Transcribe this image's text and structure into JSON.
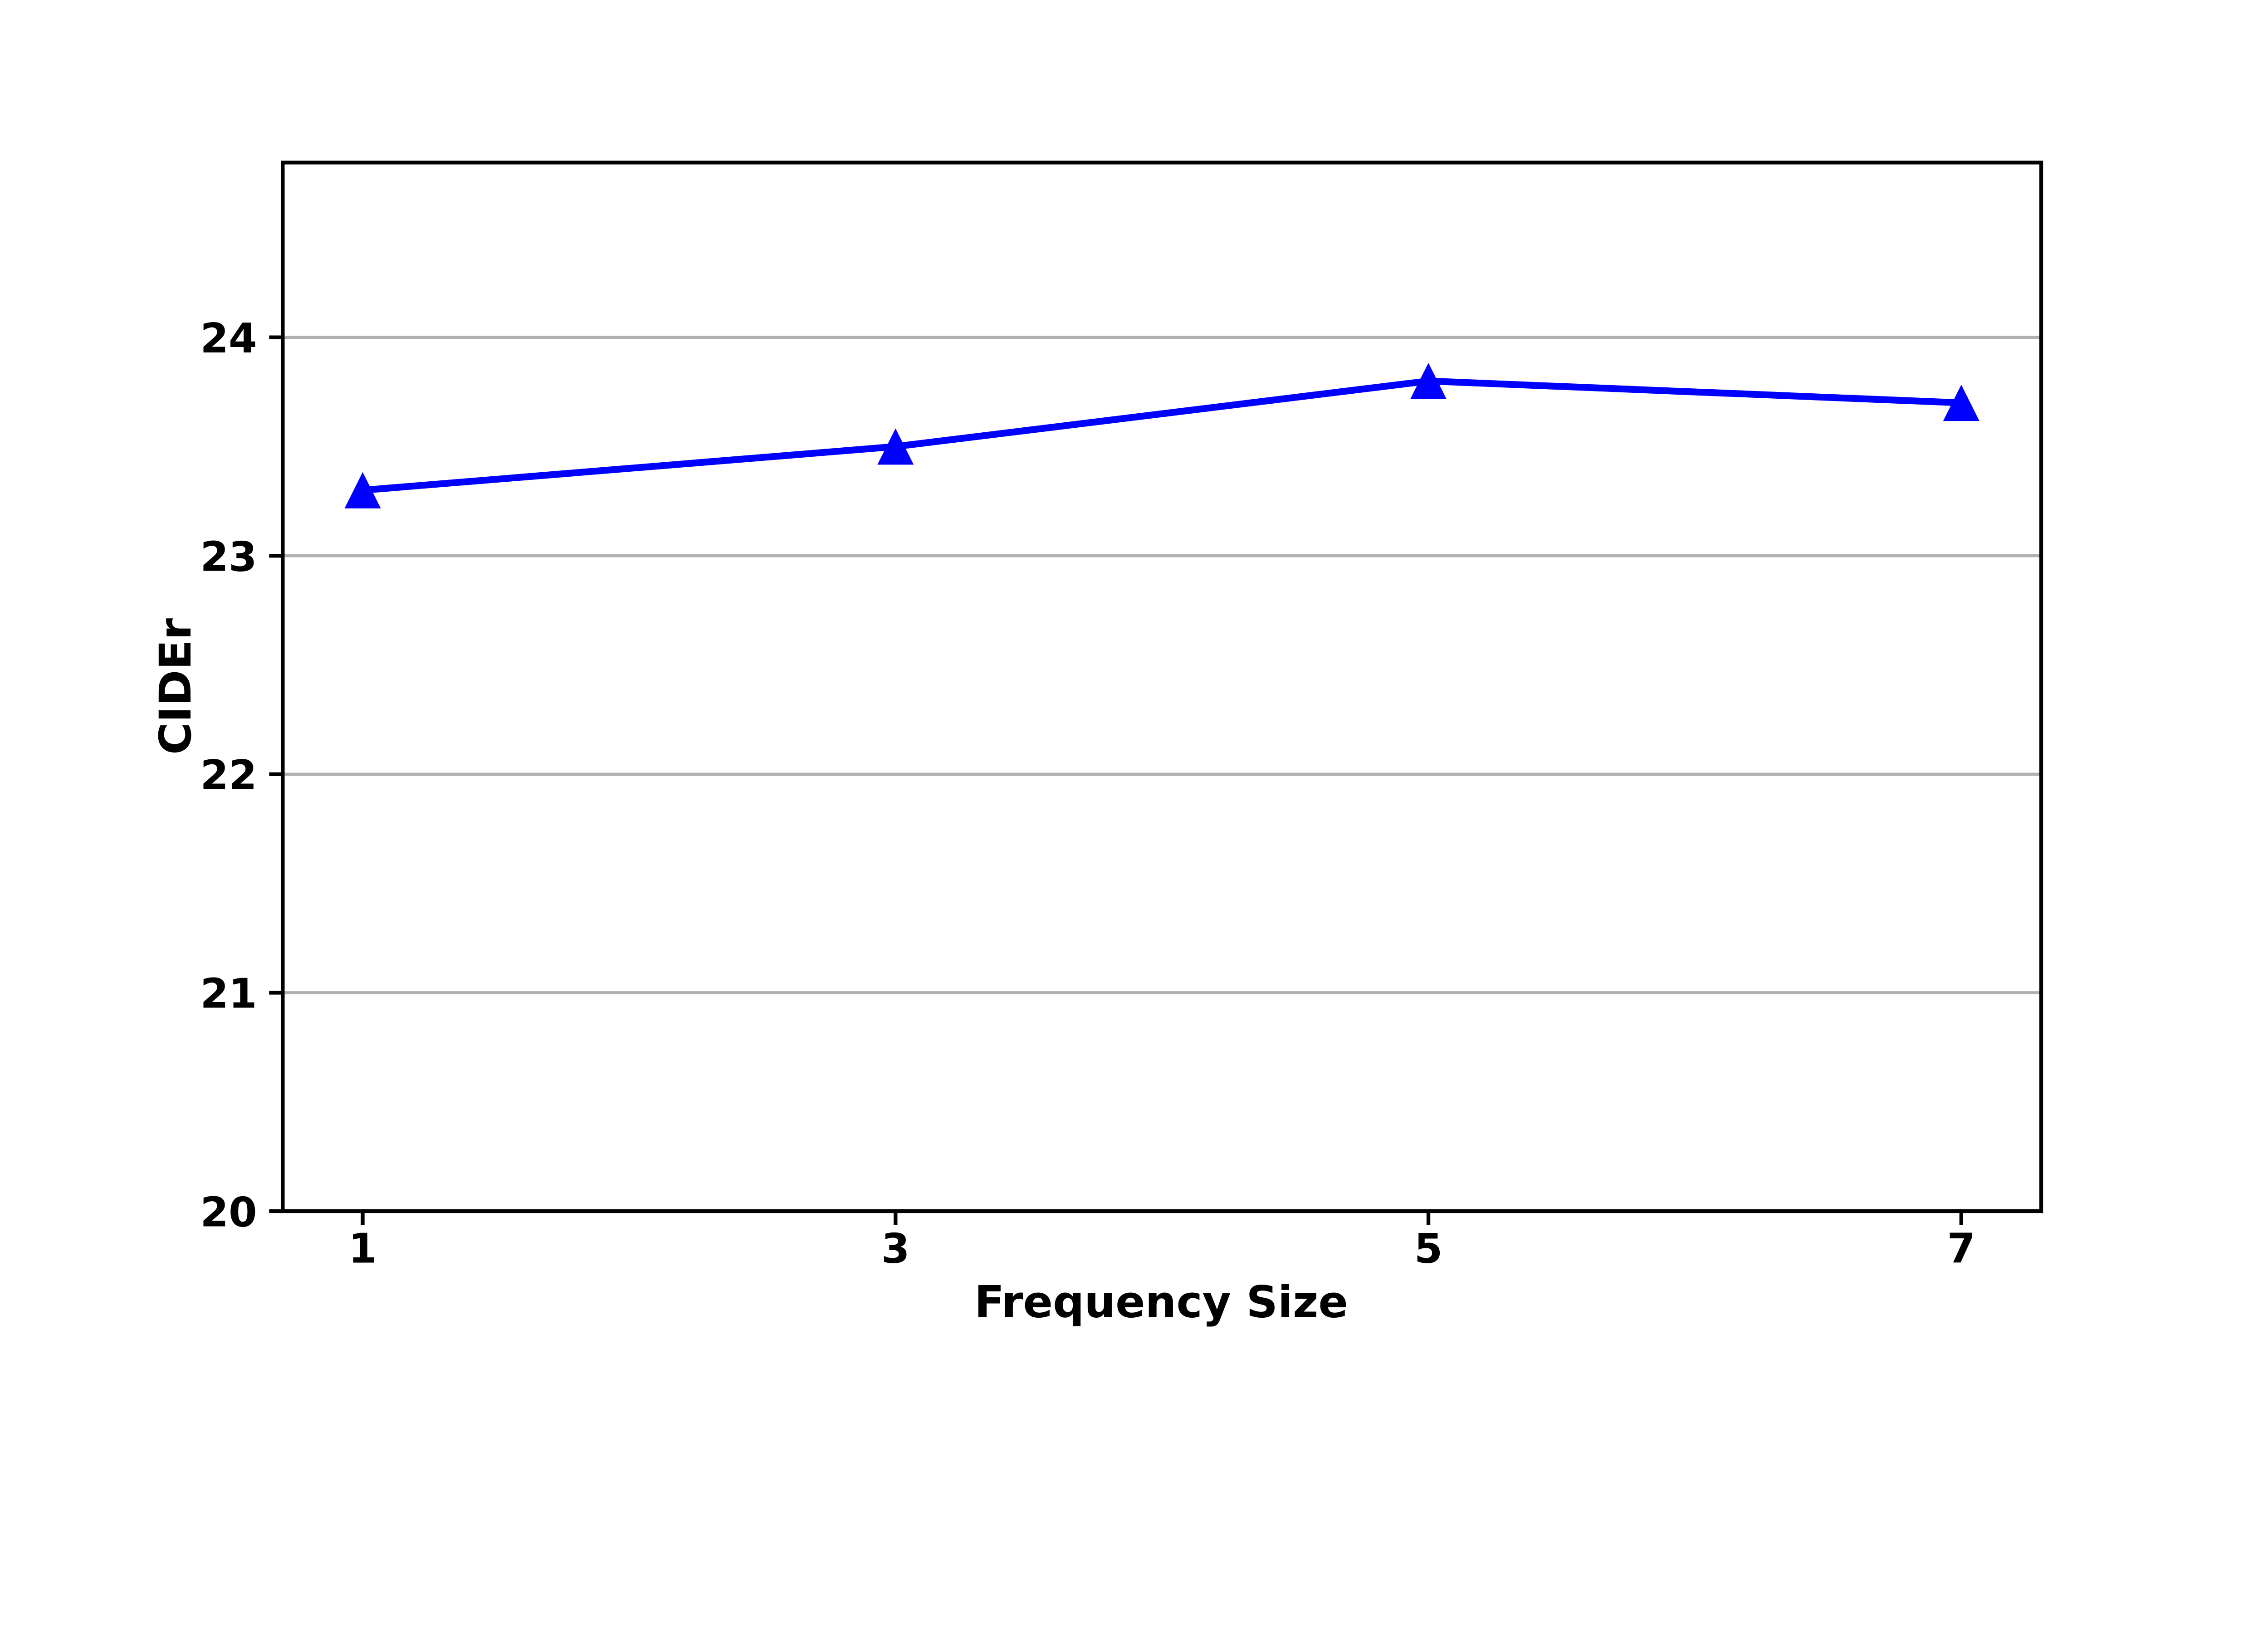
{
  "chart_data": {
    "type": "line",
    "title": "",
    "xlabel": "Frequency Size",
    "ylabel": "CIDEr",
    "x": [
      1,
      3,
      5,
      7
    ],
    "series": [
      {
        "name": "CIDEr",
        "values": [
          23.3,
          23.5,
          23.8,
          23.7
        ],
        "color": "#0000ff",
        "marker": "triangle-up",
        "marker_size": 12,
        "line_width": 4.5
      }
    ],
    "xticks": [
      "1",
      "3",
      "5",
      "7"
    ],
    "xtick_values": [
      1,
      3,
      5,
      7
    ],
    "yticks": [
      "20",
      "21",
      "22",
      "23",
      "24"
    ],
    "ytick_values": [
      20,
      21,
      22,
      23,
      24
    ],
    "xlim": [
      0.7,
      7.3
    ],
    "ylim": [
      20,
      24.8
    ],
    "grid": "horizontal-y",
    "grid_color": "#b0b0b0",
    "spine_color": "#000000",
    "text_color": "#000000",
    "background": "#ffffff",
    "legend": "none"
  }
}
